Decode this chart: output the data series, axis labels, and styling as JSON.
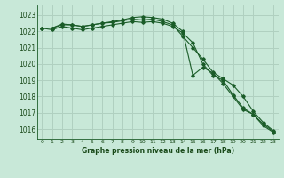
{
  "title": "Graphe pression niveau de la mer (hPa)",
  "bg_color": "#c8e8d8",
  "grid_color": "#b0d0c0",
  "line_color": "#1a5c28",
  "text_color": "#1a4a1a",
  "xlim": [
    -0.5,
    23.5
  ],
  "ylim": [
    1015.4,
    1023.6
  ],
  "yticks": [
    1016,
    1017,
    1018,
    1019,
    1020,
    1021,
    1022,
    1023
  ],
  "xticks": [
    0,
    1,
    2,
    3,
    4,
    5,
    6,
    7,
    8,
    9,
    10,
    11,
    12,
    13,
    14,
    15,
    16,
    17,
    18,
    19,
    20,
    21,
    22,
    23
  ],
  "series": [
    [
      1022.2,
      1022.1,
      1022.3,
      1022.2,
      1022.1,
      1022.2,
      1022.3,
      1022.4,
      1022.5,
      1022.6,
      1022.55,
      1022.6,
      1022.5,
      1022.3,
      1021.9,
      1021.3,
      1020.0,
      1019.3,
      1019.0,
      1018.1,
      1017.3,
      1016.9,
      1016.2,
      1015.8
    ],
    [
      1022.2,
      1022.2,
      1022.4,
      1022.4,
      1022.3,
      1022.4,
      1022.5,
      1022.55,
      1022.65,
      1022.75,
      1022.7,
      1022.75,
      1022.6,
      1022.4,
      1021.7,
      1021.0,
      1020.3,
      1019.5,
      1019.1,
      1018.7,
      1018.0,
      1017.1,
      1016.4,
      1015.9
    ],
    [
      1022.2,
      1022.2,
      1022.45,
      1022.4,
      1022.3,
      1022.4,
      1022.5,
      1022.6,
      1022.7,
      1022.85,
      1022.9,
      1022.85,
      1022.75,
      1022.5,
      1022.0,
      1019.3,
      1019.8,
      1019.45,
      1018.8,
      1018.0,
      1017.2,
      1016.9,
      1016.3,
      1015.85
    ]
  ]
}
